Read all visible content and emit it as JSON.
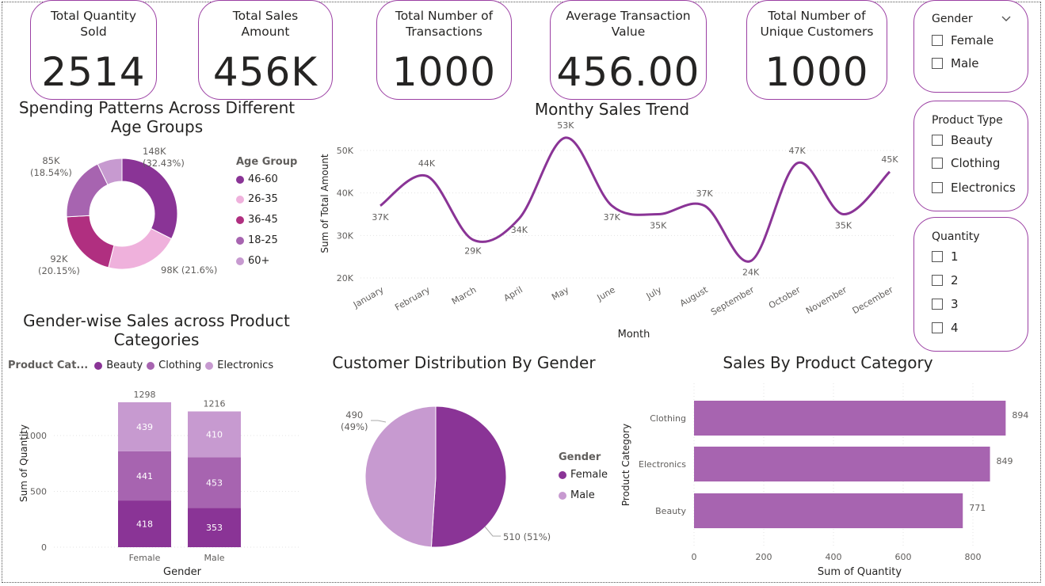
{
  "kpis": [
    {
      "label": "Total Quantity Sold",
      "value": "2514"
    },
    {
      "label": "Total Sales Amount",
      "value": "456K"
    },
    {
      "label": "Total Number of Transactions",
      "value": "1000"
    },
    {
      "label": "Average Transaction Value",
      "value": "456.00"
    },
    {
      "label": "Total Number of Unique Customers",
      "value": "1000"
    }
  ],
  "slicers": {
    "gender": {
      "title": "Gender",
      "options": [
        "Female",
        "Male"
      ]
    },
    "product_type": {
      "title": "Product Type",
      "options": [
        "Beauty",
        "Clothing",
        "Electronics"
      ]
    },
    "quantity": {
      "title": "Quantity",
      "options": [
        "1",
        "2",
        "3",
        "4"
      ]
    }
  },
  "colors": {
    "accent": "#9b3fa3",
    "line": "#8a3496",
    "bar": "#a764b0"
  },
  "age_chart": {
    "title": "Spending Patterns Across Different Age Groups",
    "legend_title": "Age Group",
    "legend": [
      "46-60",
      "26-35",
      "36-45",
      "18-25",
      "60+"
    ],
    "label_148": "148K",
    "label_148_pct": "(32.43%)",
    "label_98": "98K (21.6%)",
    "label_92": "92K",
    "label_92_pct": "(20.15%)",
    "label_85": "85K",
    "label_85_pct": "(18.54%)"
  },
  "trend_chart": {
    "title": "Monthy Sales Trend",
    "xlabel": "Month",
    "ylabel": "Sum of Total Amount"
  },
  "gender_category_chart": {
    "title": "Gender-wise Sales across Product Categories",
    "legend_title": "Product Cat...",
    "legend": [
      "Beauty",
      "Clothing",
      "Electronics"
    ],
    "xlabel": "Gender",
    "ylabel": "Sum of Quantity"
  },
  "customer_chart": {
    "title": "Customer Distribution By Gender",
    "legend_title": "Gender",
    "legend": [
      "Female",
      "Male"
    ],
    "label_male": "490",
    "label_male_pct": "(49%)",
    "label_female": "510 (51%)"
  },
  "category_chart": {
    "title": "Sales By Product Category",
    "xlabel": "Sum of Quantity",
    "ylabel": "Product Category"
  },
  "chart_data": [
    {
      "type": "pie",
      "title": "Spending Patterns Across Different Age Groups",
      "categories": [
        "46-60",
        "26-35",
        "36-45",
        "18-25",
        "60+"
      ],
      "values": [
        148,
        98,
        92,
        85,
        33
      ],
      "colors": [
        "#8a3496",
        "#efb1dc",
        "#b02f80",
        "#a764b0",
        "#c79ad0"
      ]
    },
    {
      "type": "line",
      "title": "Monthy Sales Trend",
      "xlabel": "Month",
      "ylabel": "Sum of Total Amount",
      "x": [
        "January",
        "February",
        "March",
        "April",
        "May",
        "June",
        "July",
        "August",
        "September",
        "October",
        "November",
        "December"
      ],
      "values": [
        37,
        44,
        29,
        34,
        53,
        37,
        35,
        37,
        24,
        47,
        35,
        45
      ],
      "data_labels": [
        "37K",
        "44K",
        "29K",
        "34K",
        "53K",
        "37K",
        "35K",
        "37K",
        "24K",
        "47K",
        "35K",
        "45K"
      ],
      "yticks": [
        "20K",
        "30K",
        "40K",
        "50K"
      ],
      "ylim": [
        20,
        55
      ]
    },
    {
      "type": "bar",
      "title": "Gender-wise Sales across Product Categories",
      "categories": [
        "Female",
        "Male"
      ],
      "series": [
        {
          "name": "Beauty",
          "values": [
            418,
            353
          ],
          "color": "#8a3496"
        },
        {
          "name": "Clothing",
          "values": [
            441,
            453
          ],
          "color": "#a764b0"
        },
        {
          "name": "Electronics",
          "values": [
            439,
            410
          ],
          "color": "#c79ad0"
        }
      ],
      "totals": [
        1298,
        1216
      ],
      "yticks": [
        "0",
        "500",
        "1000"
      ],
      "ylim": [
        0,
        1400
      ]
    },
    {
      "type": "pie",
      "title": "Customer Distribution By Gender",
      "categories": [
        "Female",
        "Male"
      ],
      "values": [
        510,
        490
      ],
      "colors": [
        "#8a3496",
        "#c79ad0"
      ]
    },
    {
      "type": "bar",
      "title": "Sales By Product Category",
      "categories": [
        "Clothing",
        "Electronics",
        "Beauty"
      ],
      "values": [
        894,
        849,
        771
      ],
      "xticks": [
        "0",
        "200",
        "400",
        "600",
        "800"
      ],
      "xlim": [
        0,
        900
      ]
    }
  ]
}
